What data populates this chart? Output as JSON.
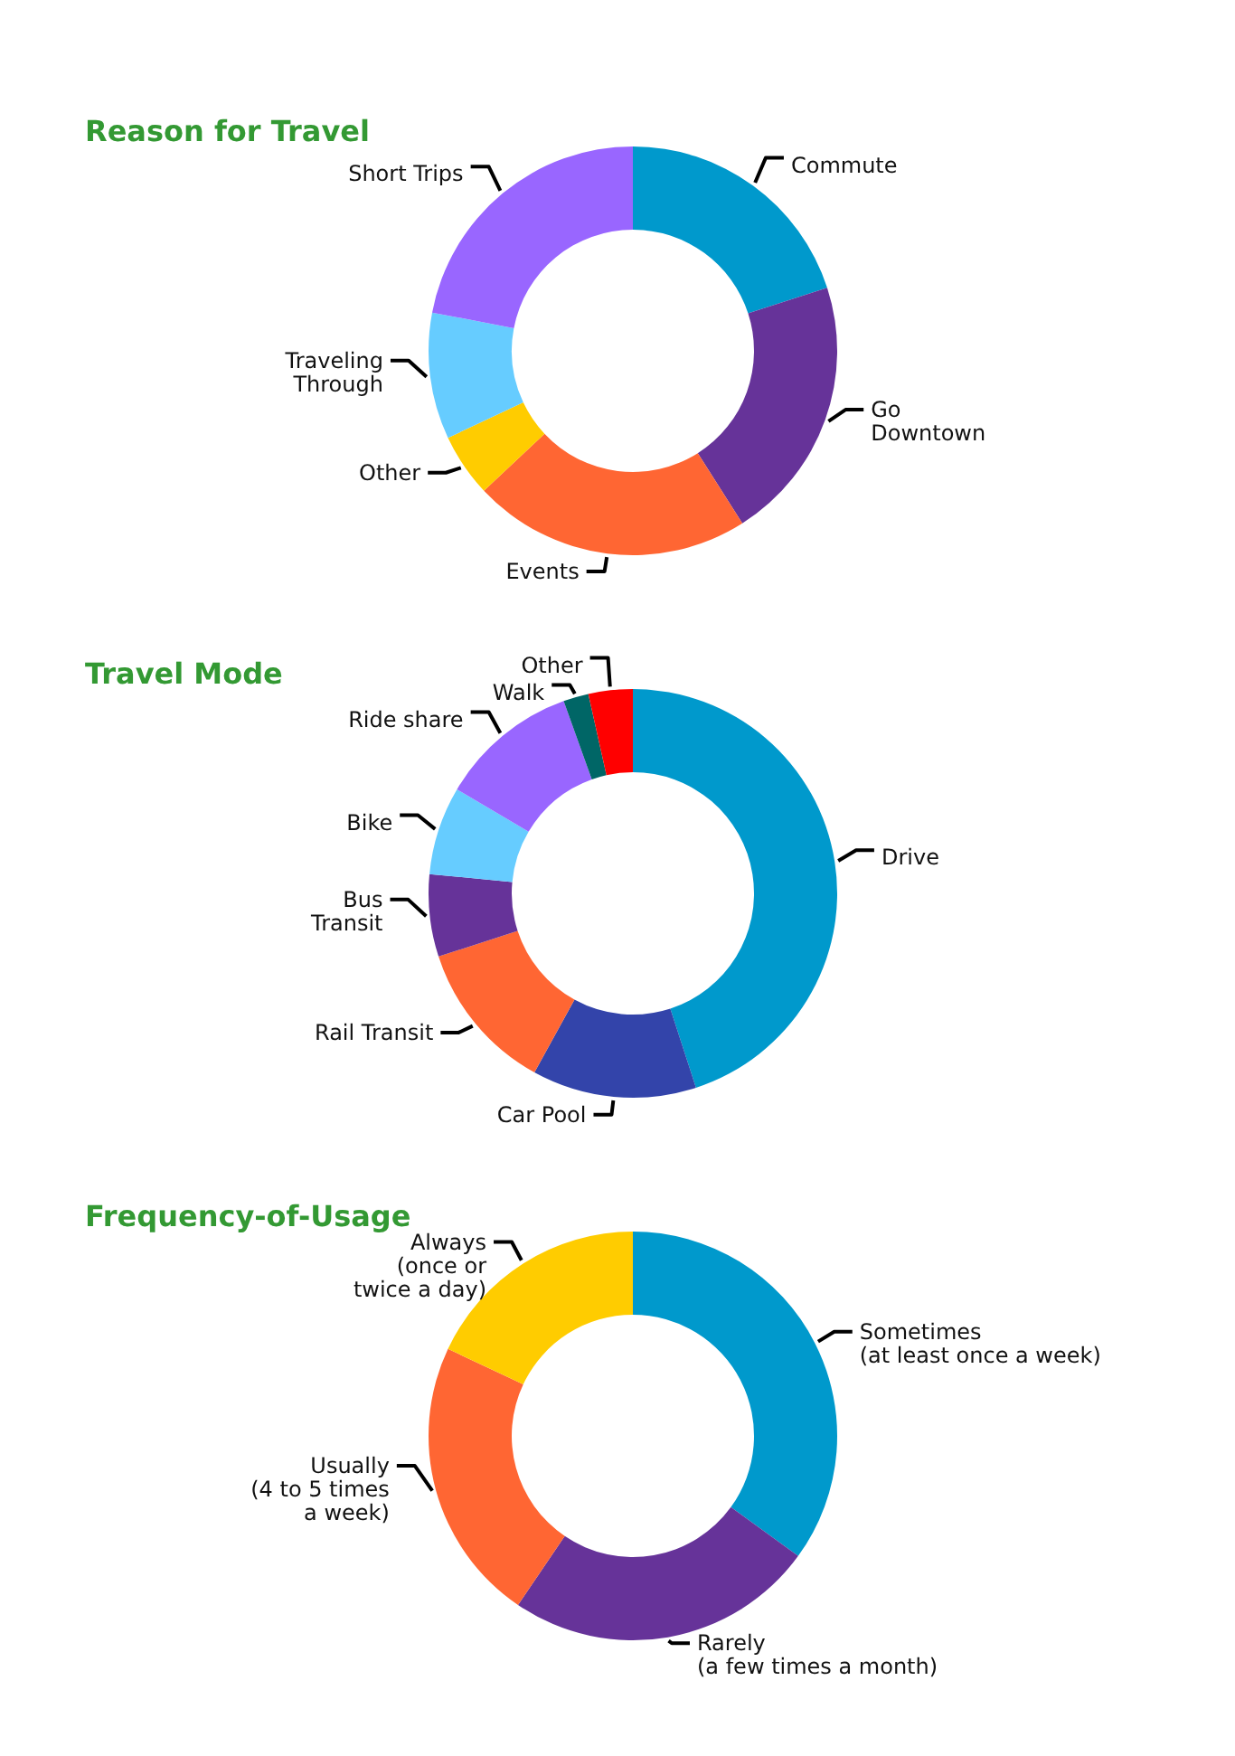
{
  "chart_data": [
    {
      "type": "donut",
      "title": "Reason for Travel",
      "categories": [
        "Commute",
        "Go\nDowntown",
        "Events",
        "Other",
        "Traveling\nThrough",
        "Short Trips"
      ],
      "values": [
        20,
        21,
        22,
        5,
        10,
        22
      ],
      "colors": [
        "#0099cc",
        "#663399",
        "#ff6633",
        "#ffcc00",
        "#66ccff",
        "#9966ff"
      ]
    },
    {
      "type": "donut",
      "title": "Travel Mode",
      "categories": [
        "Drive",
        "Car Pool",
        "Rail Transit",
        "Bus\nTransit",
        "Bike",
        "Ride share",
        "Walk",
        "Other"
      ],
      "values": [
        45,
        13,
        12,
        6.5,
        7,
        11,
        2,
        3.5
      ],
      "colors": [
        "#0099cc",
        "#3344aa",
        "#ff6633",
        "#663399",
        "#66ccff",
        "#9966ff",
        "#006666",
        "#ff0000"
      ]
    },
    {
      "type": "donut",
      "title": "Frequency-of-Usage",
      "categories": [
        "Sometimes\n(at least once a week)",
        "Rarely\n(a few times a month)",
        "Usually\n(4 to 5 times\na week)",
        "Always\n(once or\ntwice a day)"
      ],
      "values": [
        35,
        24.5,
        22.5,
        18
      ],
      "colors": [
        "#0099cc",
        "#663399",
        "#ff6633",
        "#ffcc00"
      ]
    }
  ]
}
